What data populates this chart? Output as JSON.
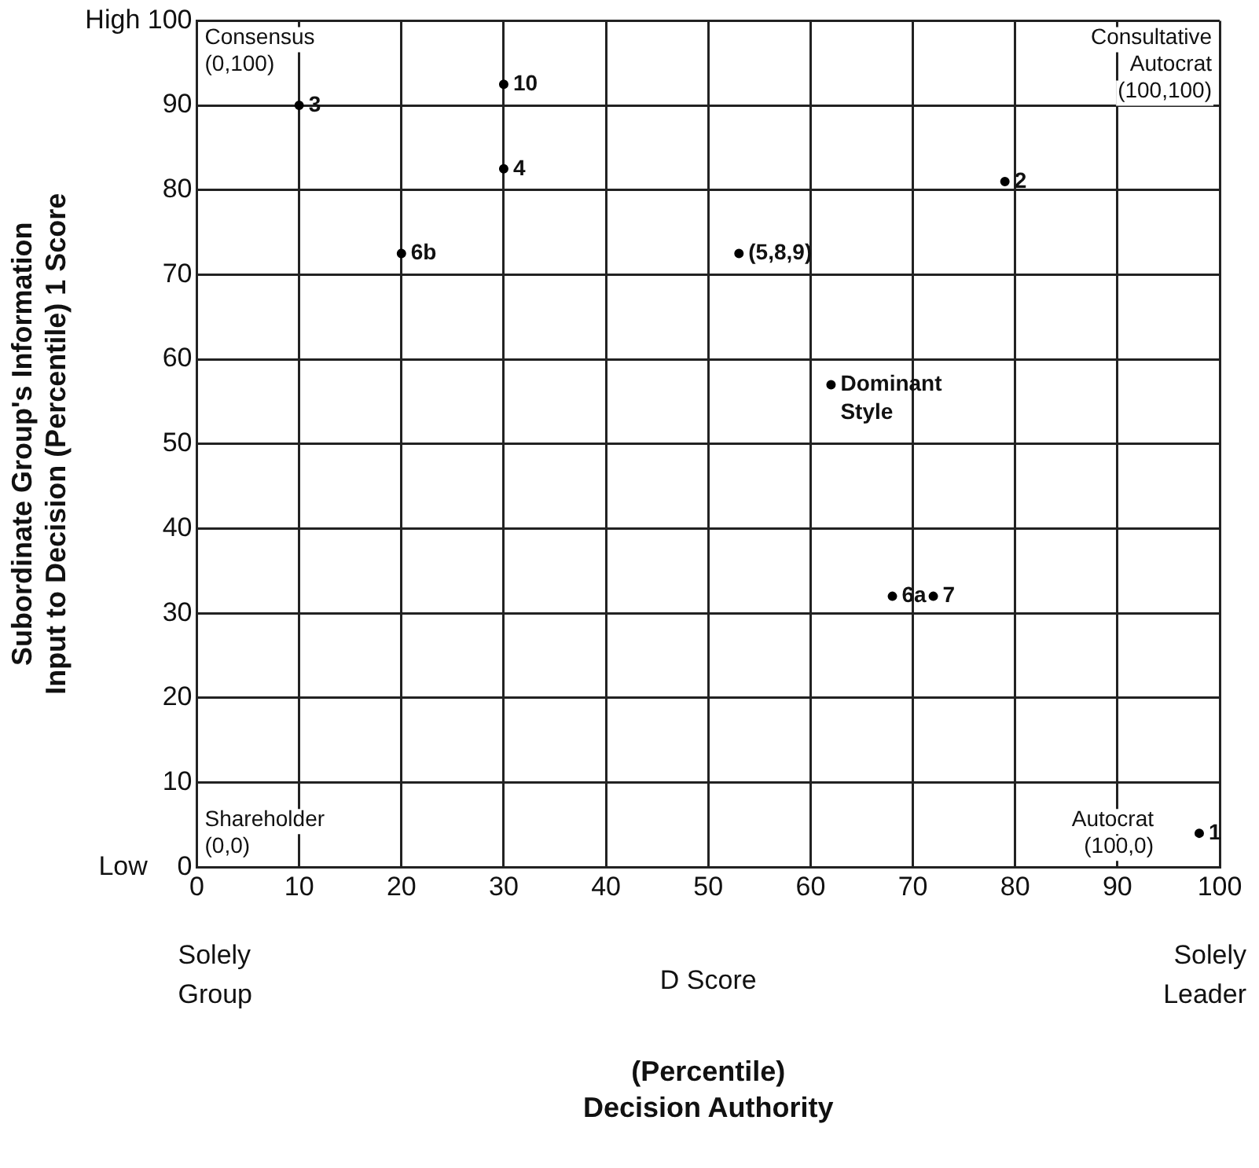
{
  "chart_data": {
    "type": "scatter",
    "ylabel": "Subordinate Group's Information\nInput to Decision (Percentile) 1 Score",
    "xlim": [
      0,
      100
    ],
    "xticks": [
      0,
      10,
      20,
      30,
      40,
      50,
      60,
      70,
      80,
      90,
      100
    ],
    "ylim": [
      0,
      100
    ],
    "yticks": [
      {
        "value": 0,
        "label": "Low    0"
      },
      10,
      20,
      30,
      40,
      50,
      60,
      70,
      80,
      90,
      {
        "value": 100,
        "label": "High 100"
      }
    ],
    "grid": true,
    "legend": false,
    "marker": "circle",
    "series": [
      {
        "name": "3",
        "color": "#000000",
        "x": [
          10
        ],
        "values": [
          90
        ]
      },
      {
        "name": "10",
        "color": "#000000",
        "x": [
          30
        ],
        "values": [
          92.5
        ]
      },
      {
        "name": "4",
        "color": "#000000",
        "x": [
          30
        ],
        "values": [
          82.5
        ]
      },
      {
        "name": "2",
        "color": "#000000",
        "x": [
          79
        ],
        "values": [
          81
        ]
      },
      {
        "name": "6b",
        "color": "#000000",
        "x": [
          20
        ],
        "values": [
          72.5
        ]
      },
      {
        "name": "(5,8,9)",
        "color": "#000000",
        "x": [
          53
        ],
        "values": [
          72.5
        ]
      },
      {
        "name": "6a",
        "color": "#000000",
        "x": [
          68
        ],
        "values": [
          32
        ]
      },
      {
        "name": "7",
        "color": "#000000",
        "x": [
          72
        ],
        "values": [
          32
        ]
      },
      {
        "name": "1",
        "color": "#000000",
        "x": [
          98
        ],
        "values": [
          4
        ]
      },
      {
        "name": "Dominant Style",
        "color": "#000000",
        "x": [
          62
        ],
        "values": [
          57
        ]
      }
    ],
    "annotations": [
      "Consensus\n(0,100)",
      "Consultative\nAutocrat\n(100,100)",
      "Shareholder\n(0,0)",
      "Autocrat\n(100,0)",
      "Solely\nGroup",
      "Solely\nLeader",
      "D Score",
      "(Percentile)\nDecision Authority"
    ]
  }
}
